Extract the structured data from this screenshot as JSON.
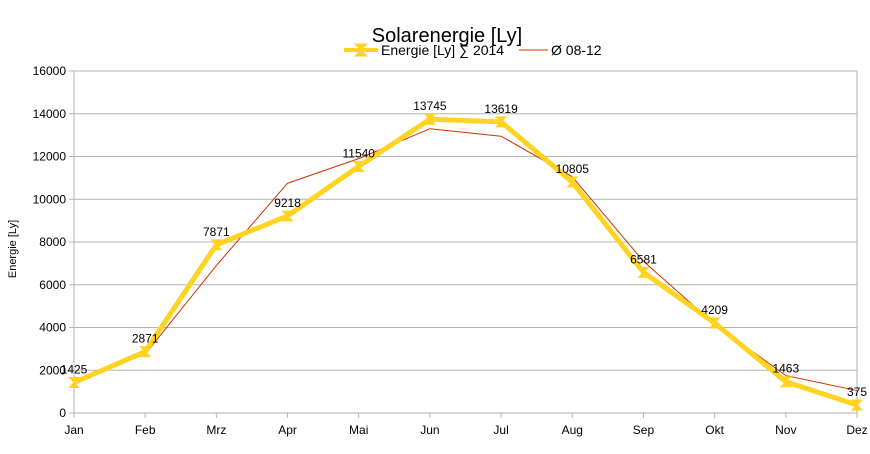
{
  "chart_data": {
    "type": "line",
    "title": "Solarenergie [Ly]",
    "xlabel": "",
    "ylabel": "Energie [Ly]",
    "categories": [
      "Jan",
      "Feb",
      "Mrz",
      "Apr",
      "Mai",
      "Jun",
      "Jul",
      "Aug",
      "Sep",
      "Okt",
      "Nov",
      "Dez"
    ],
    "ylim": [
      0,
      16000
    ],
    "yticks": [
      0,
      2000,
      4000,
      6000,
      8000,
      10000,
      12000,
      14000,
      16000
    ],
    "grid": "horizontal",
    "legend_position": "top",
    "series": [
      {
        "name": "Energie [Ly] ∑ 2014",
        "color": "#ffd320",
        "marker": "hourglass",
        "values": [
          1425,
          2871,
          7871,
          9218,
          11540,
          13745,
          13619,
          10805,
          6581,
          4209,
          1463,
          375
        ],
        "data_labels": [
          "1425",
          "2871",
          "7871",
          "9218",
          "11540",
          "13745",
          "13619",
          "10805",
          "6581",
          "4209",
          "1463",
          "375"
        ]
      },
      {
        "name": "Ø 08-12",
        "color": "#cc3300",
        "marker": "none",
        "values": [
          1500,
          2750,
          6900,
          10750,
          11900,
          13300,
          12950,
          11050,
          7100,
          4150,
          1750,
          1050
        ]
      }
    ]
  }
}
